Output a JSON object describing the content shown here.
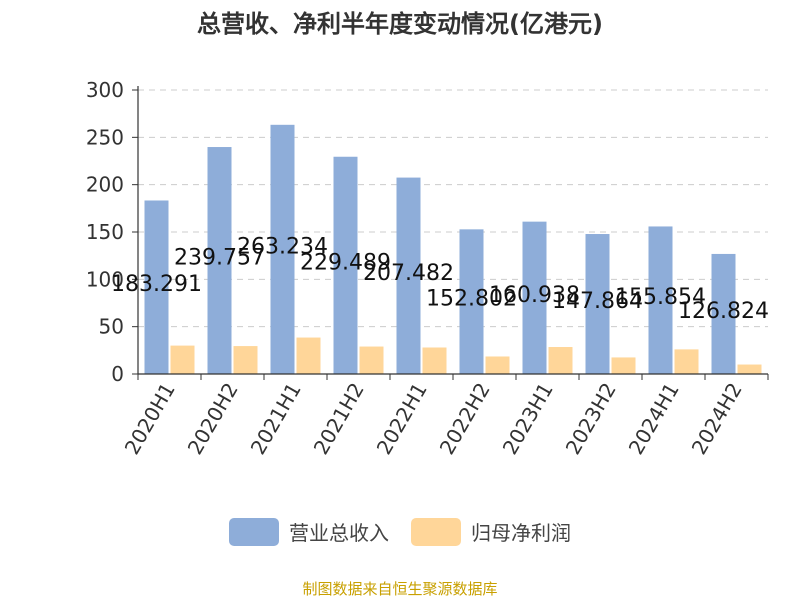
{
  "chart_data": {
    "type": "bar",
    "title": "总营收、净利半年度变动情况(亿港元)",
    "categories": [
      "2020H1",
      "2020H2",
      "2021H1",
      "2021H2",
      "2022H1",
      "2022H2",
      "2023H1",
      "2023H2",
      "2024H1",
      "2024H2"
    ],
    "series": [
      {
        "name": "营业总收入",
        "color": "#8eadd9",
        "values": [
          183.291,
          239.757,
          263.234,
          229.489,
          207.482,
          152.802,
          160.938,
          147.864,
          155.854,
          126.824
        ],
        "labels": [
          "183.291",
          "239.757",
          "263.234",
          "229.489",
          "207.482",
          "152.802",
          "160.938",
          "147.864",
          "155.854",
          "126.824"
        ]
      },
      {
        "name": "归母净利润",
        "color": "#ffd699",
        "values": [
          30,
          29.5,
          38.5,
          29,
          28,
          18.5,
          28.5,
          17.5,
          26,
          10
        ]
      }
    ],
    "yticks": [
      0,
      50,
      100,
      150,
      200,
      250,
      300
    ],
    "ylim": [
      0,
      300
    ],
    "grid": true,
    "legend_position": "bottom"
  },
  "source": "制图数据来自恒生聚源数据库"
}
